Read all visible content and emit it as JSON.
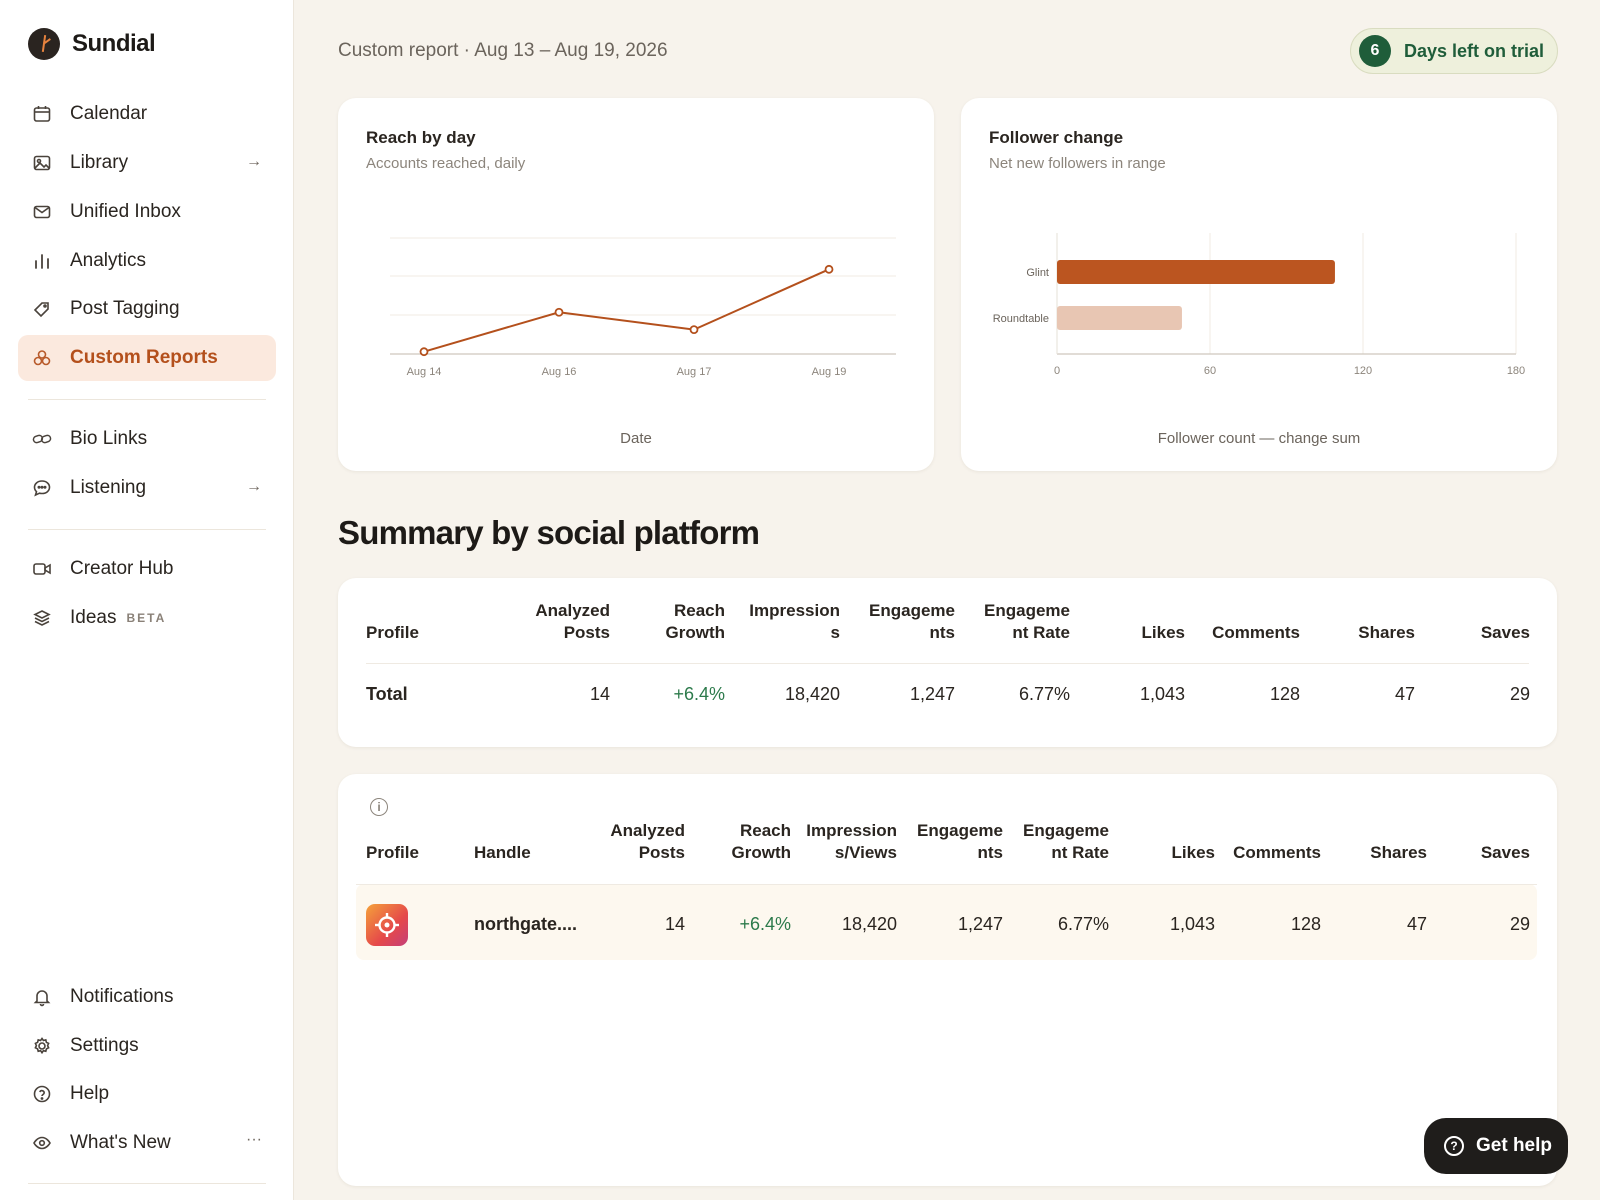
{
  "brand": {
    "name": "Sundial"
  },
  "sidebar": {
    "items": [
      {
        "label": "Calendar",
        "icon": "calendar-icon"
      },
      {
        "label": "Library",
        "icon": "image-icon",
        "arrow": "→"
      },
      {
        "label": "Unified Inbox",
        "icon": "mail-icon"
      },
      {
        "label": "Analytics",
        "icon": "bar-chart-icon"
      },
      {
        "label": "Post Tagging",
        "icon": "tag-icon"
      },
      {
        "label": "Custom Reports",
        "icon": "custom-reports-icon",
        "active": true
      },
      {
        "label": "Bio Links",
        "icon": "link-icon"
      },
      {
        "label": "Listening",
        "icon": "chat-icon",
        "arrow": "→"
      },
      {
        "label": "Creator Hub",
        "icon": "video-icon"
      },
      {
        "label": "Ideas",
        "icon": "layers-icon",
        "badge": "BETA"
      },
      {
        "label": "Notifications",
        "icon": "bell-icon"
      },
      {
        "label": "Settings",
        "icon": "gear-icon"
      },
      {
        "label": "Help",
        "icon": "help-circle-icon"
      },
      {
        "label": "What's New",
        "icon": "eye-icon",
        "more": "···"
      }
    ]
  },
  "header": {
    "title": "Custom report · Aug 13 – Aug 19, 2026",
    "trial_count": "6",
    "trial_label": "Days left on trial"
  },
  "reach_card": {
    "title": "Reach by day",
    "subtitle": "Accounts reached, daily",
    "xlabel": "Date"
  },
  "follower_card": {
    "title": "Follower change",
    "subtitle": "Net new followers in range",
    "xlabel": "Follower count — change sum"
  },
  "chart_data": [
    {
      "type": "line",
      "title": "Reach by day",
      "x": [
        "Aug 14",
        "Aug 16",
        "Aug 17",
        "Aug 19"
      ],
      "series": [
        {
          "values": [
            2,
            36,
            21,
            73
          ],
          "color": "#b4501c"
        }
      ],
      "ylim": [
        0,
        100
      ],
      "grid": true
    },
    {
      "type": "bar",
      "orientation": "horizontal",
      "title": "Follower change",
      "categories": [
        "Glint",
        "Roundtable"
      ],
      "values": [
        109,
        49
      ],
      "colors": [
        "#bb5520",
        "#e8c6b3"
      ],
      "xlim": [
        0,
        180
      ],
      "ticks": [
        "0",
        "60",
        "120",
        "180"
      ],
      "grid": true
    }
  ],
  "section": {
    "heading": "Summary by social platform"
  },
  "summary_table": {
    "headers": [
      "Profile",
      "Analyzed\nPosts",
      "Reach\nGrowth",
      "Impression\ns",
      "Engageme\nnts",
      "Engageme\nnt Rate",
      "Likes",
      "Comments",
      "Shares",
      "Saves"
    ],
    "row": [
      "Total",
      "14",
      "+6.4%",
      "18,420",
      "1,247",
      "6.77%",
      "1,043",
      "128",
      "47",
      "29"
    ]
  },
  "profile_table": {
    "headers": [
      "Profile",
      "Handle",
      "Analyzed\nPosts",
      "Reach\nGrowth",
      "Impression\ns/Views",
      "Engageme\nnts",
      "Engageme\nnt Rate",
      "Likes",
      "Comments",
      "Shares",
      "Saves"
    ],
    "row": [
      "",
      "northgate....",
      "14",
      "+6.4%",
      "18,420",
      "1,247",
      "6.77%",
      "1,043",
      "128",
      "47",
      "29"
    ]
  },
  "help_button": {
    "label": "Get help"
  }
}
